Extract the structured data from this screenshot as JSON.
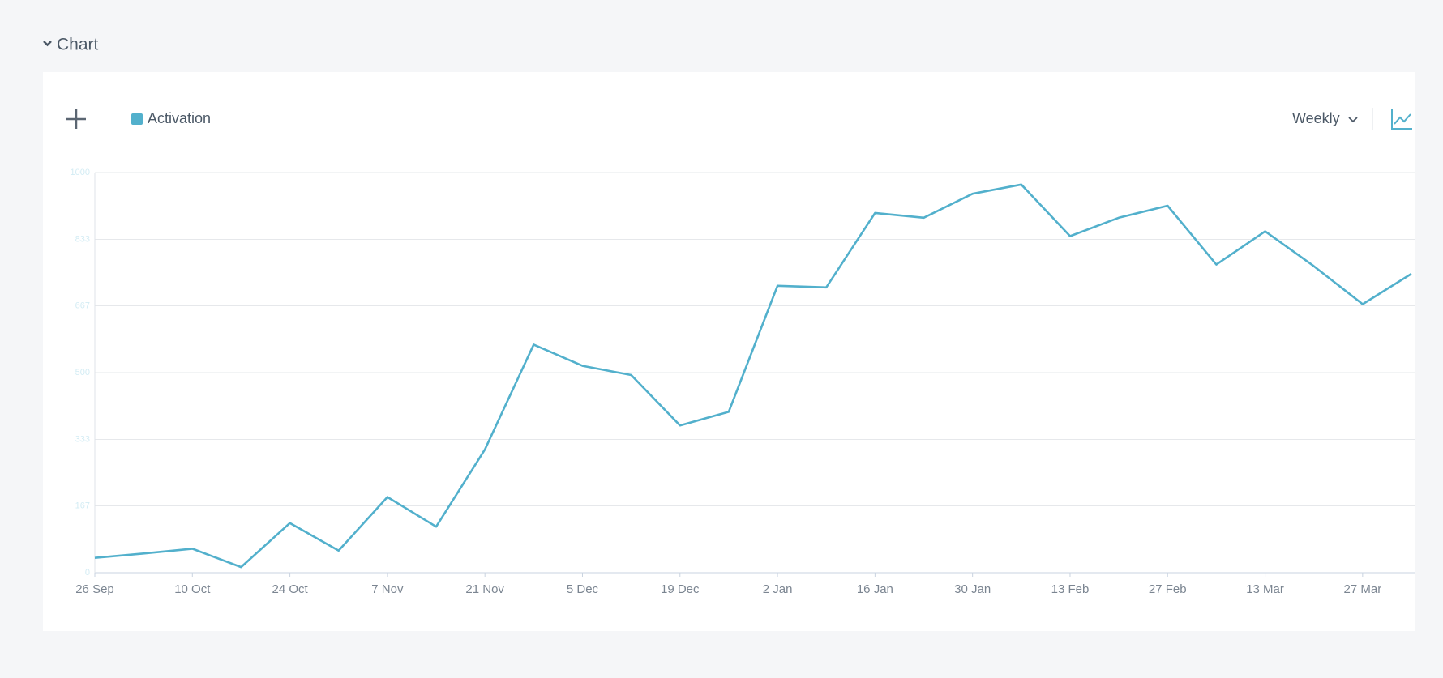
{
  "section_title": "Chart",
  "period": "Weekly",
  "chart_data": {
    "type": "line",
    "categories": [
      "26 Sep",
      null,
      "10 Oct",
      null,
      "24 Oct",
      null,
      "7 Nov",
      null,
      "21 Nov",
      null,
      "5 Dec",
      null,
      "19 Dec",
      null,
      "2 Jan",
      null,
      "16 Jan",
      null,
      "30 Jan",
      null,
      "13 Feb",
      null,
      "27 Feb",
      null,
      "13 Mar",
      null,
      "27 Mar",
      null
    ],
    "series": [
      {
        "name": "Activation",
        "color": "#52b0cc",
        "values": [
          37,
          48,
          60,
          14,
          124,
          55,
          189,
          115,
          308,
          570,
          517,
          494,
          368,
          402,
          717,
          713,
          899,
          887,
          947,
          970,
          841,
          887,
          917,
          770,
          853,
          766,
          671,
          747
        ]
      }
    ],
    "ylim": [
      0,
      1000
    ],
    "yticks": [
      0,
      167,
      333,
      500,
      667,
      833,
      1000
    ],
    "grid": true
  }
}
